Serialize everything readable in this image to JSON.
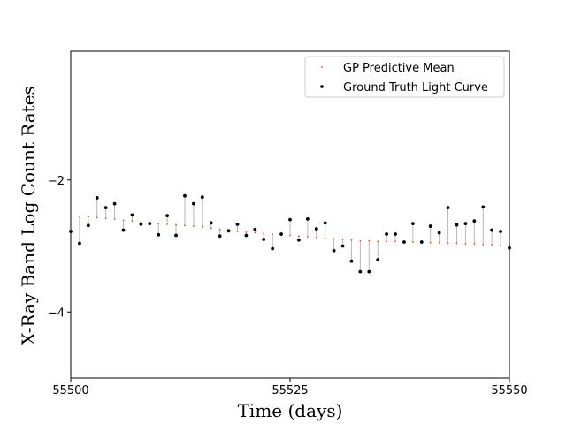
{
  "chart_data": {
    "type": "scatter",
    "title": "",
    "xlabel": "Time (days)",
    "ylabel": "X-Ray Band Log Count Rates",
    "xlim": [
      55500,
      55550
    ],
    "ylim": [
      -5.0,
      -0.05
    ],
    "xticks": [
      55500,
      55525,
      55550
    ],
    "xtick_labels": [
      "55500",
      "55525",
      "55550"
    ],
    "yticks": [
      -4,
      -2
    ],
    "ytick_labels": [
      "−4",
      "−2"
    ],
    "grid": false,
    "legend_position": "top-right",
    "series": [
      {
        "name": "GP Predictive Mean",
        "marker": "small dot",
        "color": "#d95319",
        "x": [
          55501,
          55502,
          55503,
          55504,
          55505,
          55506,
          55507,
          55508,
          55509,
          55510,
          55511,
          55512,
          55513,
          55514,
          55515,
          55516,
          55517,
          55518,
          55519,
          55520,
          55521,
          55522,
          55523,
          55524,
          55525,
          55526,
          55527,
          55528,
          55529,
          55530,
          55531,
          55532,
          55533,
          55534,
          55535,
          55536,
          55537,
          55538,
          55539,
          55540,
          55541,
          55542,
          55543,
          55544,
          55545,
          55546,
          55547,
          55548,
          55549,
          55550
        ],
        "y": [
          -2.55,
          -2.56,
          -2.57,
          -2.58,
          -2.59,
          -2.61,
          -2.62,
          -2.63,
          -2.65,
          -2.66,
          -2.67,
          -2.68,
          -2.69,
          -2.7,
          -2.71,
          -2.73,
          -2.75,
          -2.77,
          -2.78,
          -2.79,
          -2.8,
          -2.81,
          -2.82,
          -2.83,
          -2.84,
          -2.85,
          -2.86,
          -2.87,
          -2.88,
          -2.89,
          -2.9,
          -2.91,
          -2.92,
          -2.92,
          -2.93,
          -2.93,
          -2.93,
          -2.94,
          -2.94,
          -2.95,
          -2.95,
          -2.95,
          -2.96,
          -2.96,
          -2.97,
          -2.97,
          -2.98,
          -2.98,
          -2.99,
          -2.99
        ]
      },
      {
        "name": "Ground Truth Light Curve",
        "marker": "dot",
        "color": "#000000",
        "x": [
          55500,
          55501,
          55502,
          55503,
          55504,
          55505,
          55506,
          55507,
          55508,
          55509,
          55510,
          55511,
          55512,
          55513,
          55514,
          55515,
          55516,
          55517,
          55518,
          55519,
          55520,
          55521,
          55522,
          55523,
          55524,
          55525,
          55526,
          55527,
          55528,
          55529,
          55530,
          55531,
          55532,
          55533,
          55534,
          55535,
          55536,
          55537,
          55538,
          55539,
          55540,
          55541,
          55542,
          55543,
          55544,
          55545,
          55546,
          55547,
          55548,
          55549,
          55550
        ],
        "y": [
          -2.78,
          -2.96,
          -2.69,
          -2.27,
          -2.42,
          -2.36,
          -2.76,
          -2.53,
          -2.67,
          -2.66,
          -2.83,
          -2.54,
          -2.84,
          -2.24,
          -2.36,
          -2.26,
          -2.65,
          -2.85,
          -2.77,
          -2.67,
          -2.84,
          -2.75,
          -2.9,
          -3.04,
          -2.82,
          -2.6,
          -2.91,
          -2.59,
          -2.74,
          -2.65,
          -3.07,
          -3.0,
          -3.23,
          -3.39,
          -3.39,
          -3.21,
          -2.82,
          -2.82,
          -2.94,
          -2.66,
          -2.94,
          -2.7,
          -2.8,
          -2.42,
          -2.68,
          -2.66,
          -2.62,
          -2.41,
          -2.76,
          -2.78,
          -3.03
        ]
      }
    ]
  }
}
